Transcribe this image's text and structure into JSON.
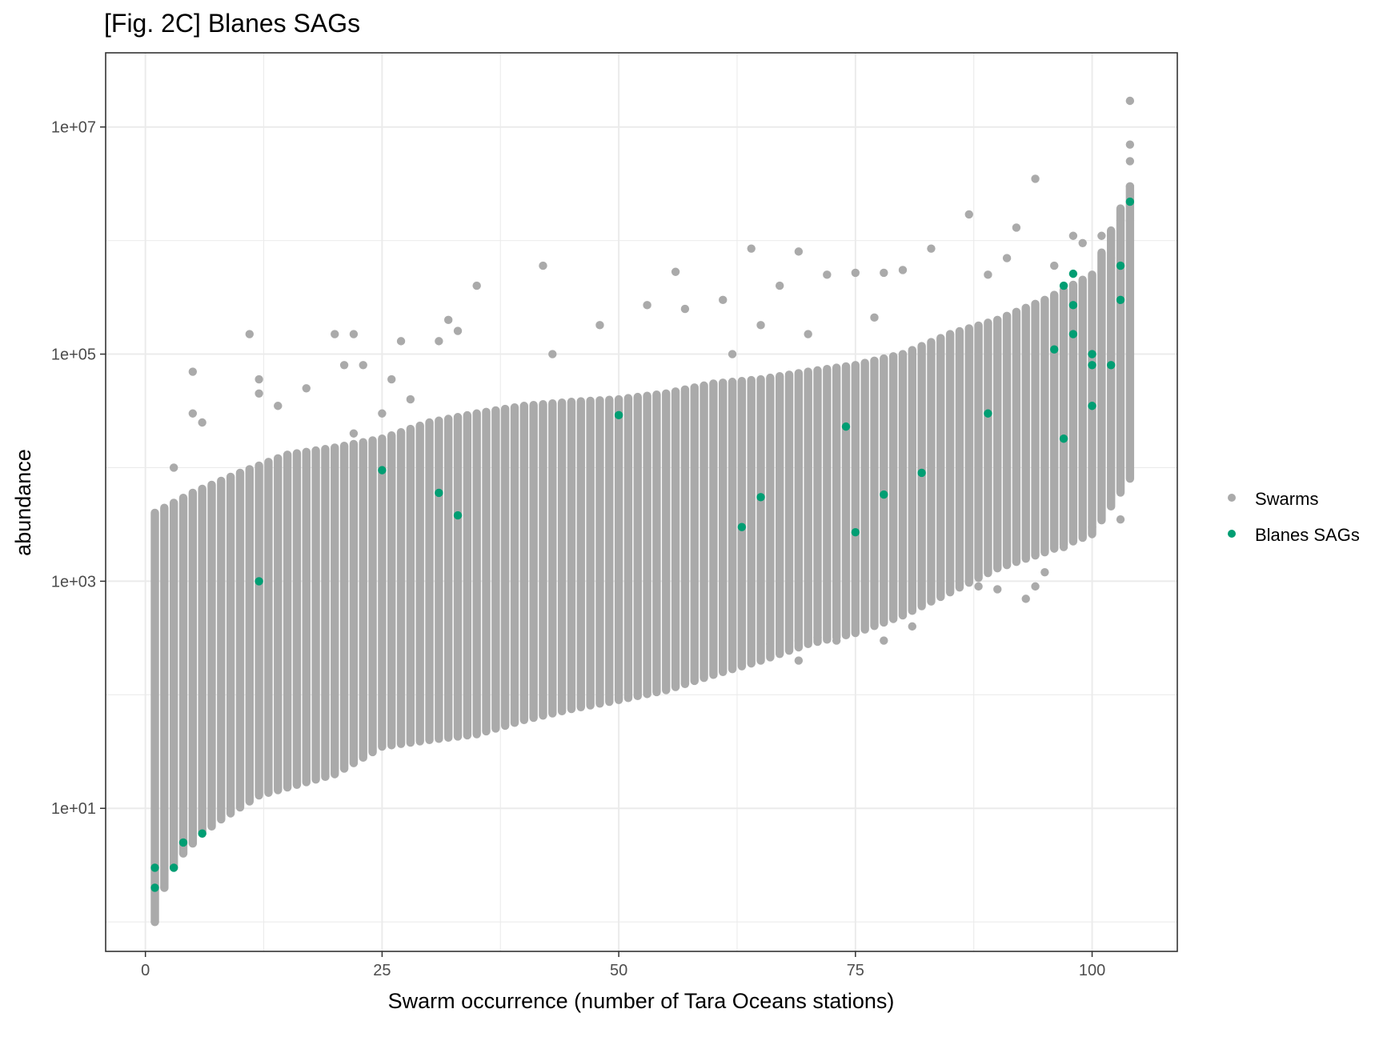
{
  "chart_data": {
    "type": "scatter",
    "title": "[Fig. 2C] Blanes SAGs",
    "xlabel": "Swarm occurrence (number of Tara Oceans stations)",
    "ylabel": "abundance",
    "x_scale": "linear",
    "y_scale": "log10",
    "xlim": [
      -4.2,
      109
    ],
    "ylim": [
      0.55,
      45000000
    ],
    "x_ticks": [
      0,
      25,
      50,
      75,
      100
    ],
    "x_tick_labels": [
      "0",
      "25",
      "50",
      "75",
      "100"
    ],
    "y_ticks": [
      10,
      1000,
      100000,
      10000000
    ],
    "y_tick_labels": [
      "1e+01",
      "1e+03",
      "1e+05",
      "1e+07"
    ],
    "grid": true,
    "legend_position": "right",
    "colors": {
      "swarms": "#aaaaaa",
      "sags": "#009e73",
      "grid": "#ebebeb",
      "axis": "#333333"
    },
    "swarm_envelope": {
      "note": "gray swarm points fill the range between a lower and upper abundance bound at every occurrence value 1..104",
      "lower_at_x": [
        [
          1,
          1
        ],
        [
          2,
          2
        ],
        [
          3,
          3
        ],
        [
          4,
          4
        ],
        [
          6,
          6
        ],
        [
          8,
          8
        ],
        [
          12,
          13
        ],
        [
          20,
          20
        ],
        [
          25,
          35
        ],
        [
          30,
          40
        ],
        [
          35,
          45
        ],
        [
          40,
          60
        ],
        [
          45,
          75
        ],
        [
          50,
          90
        ],
        [
          55,
          110
        ],
        [
          60,
          150
        ],
        [
          65,
          200
        ],
        [
          70,
          280
        ],
        [
          75,
          350
        ],
        [
          80,
          500
        ],
        [
          85,
          800
        ],
        [
          90,
          1300
        ],
        [
          95,
          1800
        ],
        [
          100,
          2600
        ],
        [
          104,
          8000
        ]
      ],
      "upper_at_x": [
        [
          1,
          4000
        ],
        [
          5,
          6000
        ],
        [
          10,
          9000
        ],
        [
          15,
          13000
        ],
        [
          20,
          15000
        ],
        [
          25,
          18000
        ],
        [
          30,
          25000
        ],
        [
          35,
          30000
        ],
        [
          40,
          35000
        ],
        [
          45,
          38000
        ],
        [
          50,
          40000
        ],
        [
          55,
          45000
        ],
        [
          60,
          55000
        ],
        [
          65,
          60000
        ],
        [
          70,
          70000
        ],
        [
          75,
          80000
        ],
        [
          80,
          100000
        ],
        [
          85,
          150000
        ],
        [
          90,
          200000
        ],
        [
          95,
          300000
        ],
        [
          100,
          500000
        ],
        [
          104,
          3000000
        ]
      ]
    },
    "series": [
      {
        "name": "Swarms",
        "color": "#aaaaaa",
        "x": [
          1,
          2,
          3,
          5,
          5,
          6,
          11,
          12,
          12,
          14,
          17,
          20,
          21,
          22,
          22,
          23,
          25,
          26,
          27,
          28,
          31,
          32,
          33,
          35,
          42,
          43,
          48,
          53,
          56,
          57,
          61,
          62,
          64,
          65,
          67,
          69,
          70,
          72,
          75,
          77,
          78,
          80,
          83,
          87,
          89,
          91,
          92,
          94,
          96,
          98,
          99,
          101,
          102,
          103,
          104,
          104,
          104,
          104,
          104,
          78,
          73,
          71,
          66,
          86,
          88,
          90,
          93,
          94,
          95,
          97,
          100,
          103,
          81,
          69,
          69
        ],
        "y": [
          1,
          2,
          10000,
          30000,
          70000,
          25000,
          150000,
          60000,
          45000,
          35000,
          50000,
          150000,
          80000,
          150000,
          20000,
          80000,
          30000,
          60000,
          130000,
          40000,
          130000,
          200000,
          160000,
          400000,
          600000,
          100000,
          180000,
          270000,
          530000,
          250000,
          300000,
          100000,
          850000,
          180000,
          400000,
          800000,
          150000,
          500000,
          520000,
          210000,
          520000,
          550000,
          850000,
          1700000,
          500000,
          700000,
          1300000,
          3500000,
          600000,
          1100000,
          950000,
          1100000,
          700000,
          1500000,
          17000000,
          7000000,
          5000000,
          3000000,
          1500000,
          300,
          300,
          320,
          280,
          1000,
          900,
          850,
          700,
          900,
          1200,
          2000,
          3000,
          3500,
          400,
          200,
          300
        ]
      },
      {
        "name": "Blanes SAGs",
        "color": "#009e73",
        "x": [
          1,
          1,
          3,
          4,
          6,
          12,
          25,
          31,
          33,
          50,
          63,
          65,
          74,
          75,
          78,
          82,
          89,
          96,
          97,
          97,
          98,
          98,
          98,
          100,
          100,
          100,
          102,
          103,
          103,
          104
        ],
        "y": [
          2,
          3,
          3,
          5,
          6,
          1000,
          9500,
          6000,
          3800,
          29000,
          3000,
          5500,
          23000,
          2700,
          5800,
          9000,
          30000,
          110000,
          400000,
          18000,
          510000,
          270000,
          150000,
          100000,
          80000,
          35000,
          80000,
          600000,
          300000,
          2200000
        ]
      }
    ]
  }
}
